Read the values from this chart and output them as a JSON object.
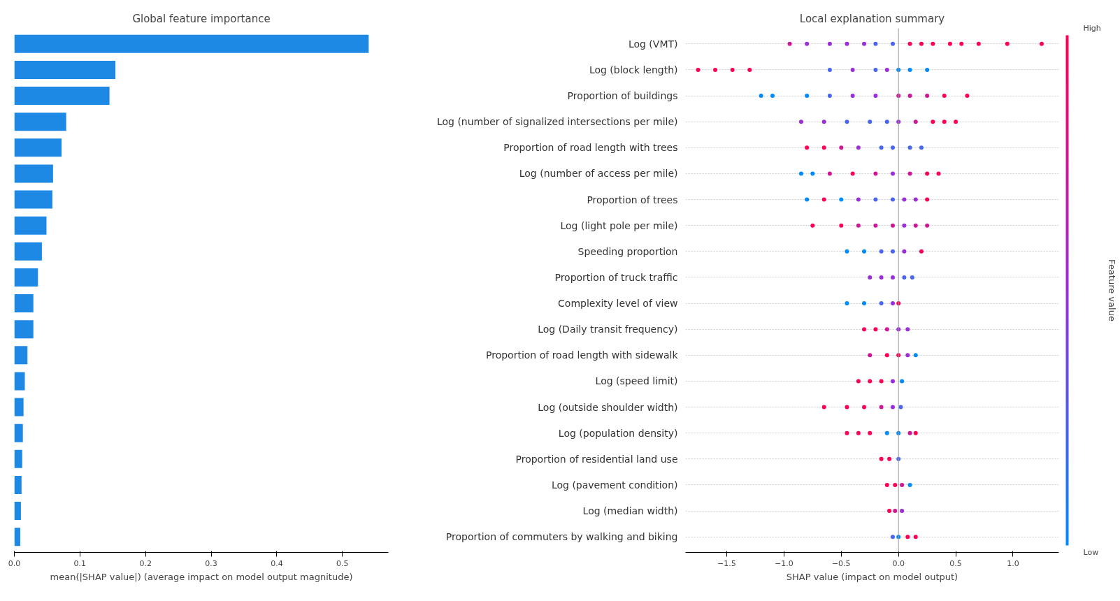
{
  "chart_data": [
    {
      "type": "bar",
      "orientation": "horizontal",
      "title": "Global feature importance",
      "xlabel": "mean(|SHAP value|) (average impact on model output magnitude)",
      "categories": [
        null,
        null,
        null,
        null,
        null,
        null,
        null,
        null,
        null,
        null,
        null,
        null,
        null,
        null,
        null,
        null,
        null,
        null,
        null,
        null
      ],
      "values": [
        0.54,
        0.154,
        0.145,
        0.079,
        0.072,
        0.059,
        0.058,
        0.049,
        0.042,
        0.036,
        0.029,
        0.029,
        0.02,
        0.016,
        0.014,
        0.013,
        0.012,
        0.011,
        0.01,
        0.009
      ],
      "color": "#1e88e5",
      "xlim": [
        0,
        0.57
      ],
      "xticks": [
        {
          "value": 0,
          "label": "0.0"
        },
        0.1,
        0.2,
        0.3,
        0.4,
        0.5
      ],
      "tick_labels": "x",
      "grid": false
    },
    {
      "type": "scatter",
      "orientation": "horizontal",
      "title": "Local explanation summary",
      "xlabel": "SHAP value (impact on model output)",
      "categories": [
        "Log (VMT)",
        "Log (block length)",
        "Proportion of buildings",
        "Log (number of signalized intersections per mile)",
        "Proportion of road length with trees",
        "Log (number of access per mile)",
        "Proportion of trees",
        "Log (light pole per mile)",
        "Speeding proportion",
        "Proportion of truck traffic",
        "Complexity level of view",
        "Log (Daily transit frequency)",
        "Proportion of road length with sidewalk",
        "Log (speed limit)",
        "Log (outside shoulder width)",
        "Log (population density)",
        "Proportion of residential land use",
        "Log (pavement condition)",
        "Log (median width)",
        "Proportion of commuters by walking and biking"
      ],
      "series": [
        {
          "x": [
            "Log (VMT)",
            "Log (VMT)",
            "Log (VMT)",
            "Log (VMT)",
            "Log (VMT)",
            "Log (VMT)",
            "Log (VMT)",
            "Log (VMT)",
            "Log (VMT)",
            "Log (VMT)",
            "Log (VMT)",
            "Log (VMT)",
            "Log (VMT)",
            "Log (VMT)",
            "Log (VMT)"
          ],
          "values": [
            -0.95,
            -0.8,
            -0.6,
            -0.45,
            -0.2,
            -0.05,
            0.1,
            0.3,
            0.45,
            0.55,
            0.7,
            0.95,
            1.25,
            -0.3,
            0.2
          ],
          "colors": [
            "#cd1795",
            "#9b2ed8",
            "#9b2ed8",
            "#9b2ed8",
            "#4a66ec",
            "#4a66ec",
            "#ff0052",
            "#ff0052",
            "#ff0052",
            "#ff0052",
            "#ff0052",
            "#ff0052",
            "#ff0052",
            "#9b2ed8",
            "#ff0052"
          ]
        },
        {
          "x": [
            "Log (block length)",
            "Log (block length)",
            "Log (block length)",
            "Log (block length)",
            "Log (block length)",
            "Log (block length)",
            "Log (block length)",
            "Log (block length)",
            "Log (block length)",
            "Log (block length)",
            "Log (block length)"
          ],
          "values": [
            -1.75,
            -1.6,
            -1.45,
            -1.3,
            -0.6,
            -0.4,
            -0.2,
            0,
            0.1,
            0.25,
            -0.1
          ],
          "colors": [
            "#ff0052",
            "#ff0052",
            "#ff0052",
            "#ff0052",
            "#4a66ec",
            "#9b2ed8",
            "#4a66ec",
            "#008bfb",
            "#008bfb",
            "#008bfb",
            "#9b2ed8"
          ]
        },
        {
          "x": [
            "Proportion of buildings",
            "Proportion of buildings",
            "Proportion of buildings",
            "Proportion of buildings",
            "Proportion of buildings",
            "Proportion of buildings",
            "Proportion of buildings",
            "Proportion of buildings",
            "Proportion of buildings",
            "Proportion of buildings",
            "Proportion of buildings"
          ],
          "values": [
            -1.2,
            -1.1,
            -0.8,
            -0.6,
            -0.4,
            -0.2,
            0,
            0.1,
            0.25,
            0.4,
            0.6
          ],
          "colors": [
            "#008bfb",
            "#008bfb",
            "#008bfb",
            "#4a66ec",
            "#9b2ed8",
            "#9b2ed8",
            "#cd1795",
            "#cd1795",
            "#cd1795",
            "#ff0052",
            "#ff0052"
          ]
        },
        {
          "x": [
            "Log (number of signalized intersections per mile)",
            "Log (number of signalized intersections per mile)",
            "Log (number of signalized intersections per mile)",
            "Log (number of signalized intersections per mile)",
            "Log (number of signalized intersections per mile)",
            "Log (number of signalized intersections per mile)",
            "Log (number of signalized intersections per mile)",
            "Log (number of signalized intersections per mile)",
            "Log (number of signalized intersections per mile)",
            "Log (number of signalized intersections per mile)"
          ],
          "values": [
            -0.85,
            -0.65,
            -0.45,
            -0.25,
            -0.1,
            0,
            0.15,
            0.3,
            0.4,
            0.5
          ],
          "colors": [
            "#9b2ed8",
            "#9b2ed8",
            "#4a66ec",
            "#4a66ec",
            "#4a66ec",
            "#9b2ed8",
            "#cd1795",
            "#ff0052",
            "#ff0052",
            "#ff0052"
          ]
        },
        {
          "x": [
            "Proportion of road length with trees",
            "Proportion of road length with trees",
            "Proportion of road length with trees",
            "Proportion of road length with trees",
            "Proportion of road length with trees",
            "Proportion of road length with trees",
            "Proportion of road length with trees",
            "Proportion of road length with trees"
          ],
          "values": [
            -0.8,
            -0.65,
            -0.5,
            -0.35,
            -0.15,
            -0.05,
            0.1,
            0.2
          ],
          "colors": [
            "#ff0052",
            "#ff0052",
            "#cd1795",
            "#9b2ed8",
            "#4a66ec",
            "#4a66ec",
            "#4a66ec",
            "#4a66ec"
          ]
        },
        {
          "x": [
            "Log (number of access per mile)",
            "Log (number of access per mile)",
            "Log (number of access per mile)",
            "Log (number of access per mile)",
            "Log (number of access per mile)",
            "Log (number of access per mile)",
            "Log (number of access per mile)",
            "Log (number of access per mile)",
            "Log (number of access per mile)"
          ],
          "values": [
            -0.85,
            -0.75,
            -0.6,
            -0.4,
            -0.2,
            -0.05,
            0.1,
            0.25,
            0.35
          ],
          "colors": [
            "#008bfb",
            "#008bfb",
            "#cd1795",
            "#ff0052",
            "#cd1795",
            "#9b2ed8",
            "#cd1795",
            "#ff0052",
            "#ff0052"
          ]
        },
        {
          "x": [
            "Proportion of trees",
            "Proportion of trees",
            "Proportion of trees",
            "Proportion of trees",
            "Proportion of trees",
            "Proportion of trees",
            "Proportion of trees",
            "Proportion of trees",
            "Proportion of trees"
          ],
          "values": [
            -0.8,
            -0.65,
            -0.5,
            -0.35,
            -0.2,
            -0.05,
            0.05,
            0.15,
            0.25
          ],
          "colors": [
            "#008bfb",
            "#ff0052",
            "#008bfb",
            "#9b2ed8",
            "#4a66ec",
            "#4a66ec",
            "#9b2ed8",
            "#9b2ed8",
            "#ff0052"
          ]
        },
        {
          "x": [
            "Log (light pole per mile)",
            "Log (light pole per mile)",
            "Log (light pole per mile)",
            "Log (light pole per mile)",
            "Log (light pole per mile)",
            "Log (light pole per mile)",
            "Log (light pole per mile)",
            "Log (light pole per mile)"
          ],
          "values": [
            -0.75,
            -0.5,
            -0.35,
            -0.2,
            -0.05,
            0.05,
            0.15,
            0.25
          ],
          "colors": [
            "#ff0052",
            "#ff0052",
            "#cd1795",
            "#cd1795",
            "#cd1795",
            "#9b2ed8",
            "#cd1795",
            "#cd1795"
          ]
        },
        {
          "x": [
            "Speeding proportion",
            "Speeding proportion",
            "Speeding proportion",
            "Speeding proportion",
            "Speeding proportion",
            "Speeding proportion"
          ],
          "values": [
            -0.45,
            -0.3,
            -0.15,
            -0.05,
            0.05,
            0.2
          ],
          "colors": [
            "#008bfb",
            "#008bfb",
            "#4a66ec",
            "#4a66ec",
            "#9b2ed8",
            "#ff0052"
          ]
        },
        {
          "x": [
            "Proportion of truck traffic",
            "Proportion of truck traffic",
            "Proportion of truck traffic",
            "Proportion of truck traffic",
            "Proportion of truck traffic"
          ],
          "values": [
            -0.25,
            -0.15,
            -0.05,
            0.05,
            0.12
          ],
          "colors": [
            "#9b2ed8",
            "#9b2ed8",
            "#9b2ed8",
            "#4a66ec",
            "#4a66ec"
          ]
        },
        {
          "x": [
            "Complexity level of view",
            "Complexity level of view",
            "Complexity level of view",
            "Complexity level of view",
            "Complexity level of view"
          ],
          "values": [
            -0.45,
            -0.3,
            -0.15,
            -0.05,
            0
          ],
          "colors": [
            "#008bfb",
            "#008bfb",
            "#4a66ec",
            "#9b2ed8",
            "#ff0052"
          ]
        },
        {
          "x": [
            "Log (Daily transit frequency)",
            "Log (Daily transit frequency)",
            "Log (Daily transit frequency)",
            "Log (Daily transit frequency)",
            "Log (Daily transit frequency)"
          ],
          "values": [
            -0.3,
            -0.2,
            -0.1,
            0,
            0.08
          ],
          "colors": [
            "#ff0052",
            "#ff0052",
            "#cd1795",
            "#9b2ed8",
            "#9b2ed8"
          ]
        },
        {
          "x": [
            "Proportion of road length with sidewalk",
            "Proportion of road length with sidewalk",
            "Proportion of road length with sidewalk",
            "Proportion of road length with sidewalk",
            "Proportion of road length with sidewalk"
          ],
          "values": [
            -0.25,
            -0.1,
            0,
            0.08,
            0.15
          ],
          "colors": [
            "#cd1795",
            "#ff0052",
            "#ff0052",
            "#9b2ed8",
            "#008bfb"
          ]
        },
        {
          "x": [
            "Log (speed limit)",
            "Log (speed limit)",
            "Log (speed limit)",
            "Log (speed limit)",
            "Log (speed limit)"
          ],
          "values": [
            -0.35,
            -0.25,
            -0.15,
            -0.05,
            0.03
          ],
          "colors": [
            "#ff0052",
            "#ff0052",
            "#ff0052",
            "#9b2ed8",
            "#008bfb"
          ]
        },
        {
          "x": [
            "Log (outside shoulder width)",
            "Log (outside shoulder width)",
            "Log (outside shoulder width)",
            "Log (outside shoulder width)",
            "Log (outside shoulder width)",
            "Log (outside shoulder width)"
          ],
          "values": [
            -0.65,
            -0.45,
            -0.3,
            -0.15,
            -0.05,
            0.02
          ],
          "colors": [
            "#ff0052",
            "#ff0052",
            "#ff0052",
            "#cd1795",
            "#9b2ed8",
            "#4a66ec"
          ]
        },
        {
          "x": [
            "Log (population density)",
            "Log (population density)",
            "Log (population density)",
            "Log (population density)",
            "Log (population density)",
            "Log (population density)",
            "Log (population density)"
          ],
          "values": [
            -0.45,
            -0.35,
            -0.25,
            -0.1,
            0,
            0.1,
            0.15
          ],
          "colors": [
            "#ff0052",
            "#ff0052",
            "#ff0052",
            "#008bfb",
            "#008bfb",
            "#cd1795",
            "#ff0052"
          ]
        },
        {
          "x": [
            "Proportion of residential land use",
            "Proportion of residential land use",
            "Proportion of residential land use"
          ],
          "values": [
            -0.15,
            -0.08,
            0
          ],
          "colors": [
            "#ff0052",
            "#ff0052",
            "#4a66ec"
          ]
        },
        {
          "x": [
            "Log (pavement condition)",
            "Log (pavement condition)",
            "Log (pavement condition)",
            "Log (pavement condition)"
          ],
          "values": [
            -0.1,
            -0.03,
            0.03,
            0.1
          ],
          "colors": [
            "#ff0052",
            "#ff0052",
            "#cd1795",
            "#008bfb"
          ]
        },
        {
          "x": [
            "Log (median width)",
            "Log (median width)",
            "Log (median width)"
          ],
          "values": [
            -0.08,
            -0.03,
            0.03
          ],
          "colors": [
            "#ff0052",
            "#cd1795",
            "#9b2ed8"
          ]
        },
        {
          "x": [
            "Proportion of commuters by walking and biking",
            "Proportion of commuters by walking and biking",
            "Proportion of commuters by walking and biking",
            "Proportion of commuters by walking and biking"
          ],
          "values": [
            -0.05,
            0,
            0.08,
            0.15
          ],
          "colors": [
            "#4a66ec",
            "#008bfb",
            "#ff0052",
            "#ff0052"
          ]
        }
      ],
      "xlim": [
        -1.86,
        1.4
      ],
      "xticks": [
        {
          "value": -1.5,
          "label": "−1.5"
        },
        {
          "value": -1.0,
          "label": "−1.0"
        },
        {
          "value": -0.5,
          "label": "−0.5"
        },
        {
          "value": 0,
          "label": "0.0"
        },
        0.5,
        {
          "value": 1.0,
          "label": "1.0"
        }
      ],
      "ref_lines": [
        {
          "axis": "x",
          "value": 0,
          "color": "#999999"
        }
      ],
      "clabel": "Feature value",
      "annotations": [
        "High",
        "Low"
      ],
      "grid": "y"
    }
  ]
}
